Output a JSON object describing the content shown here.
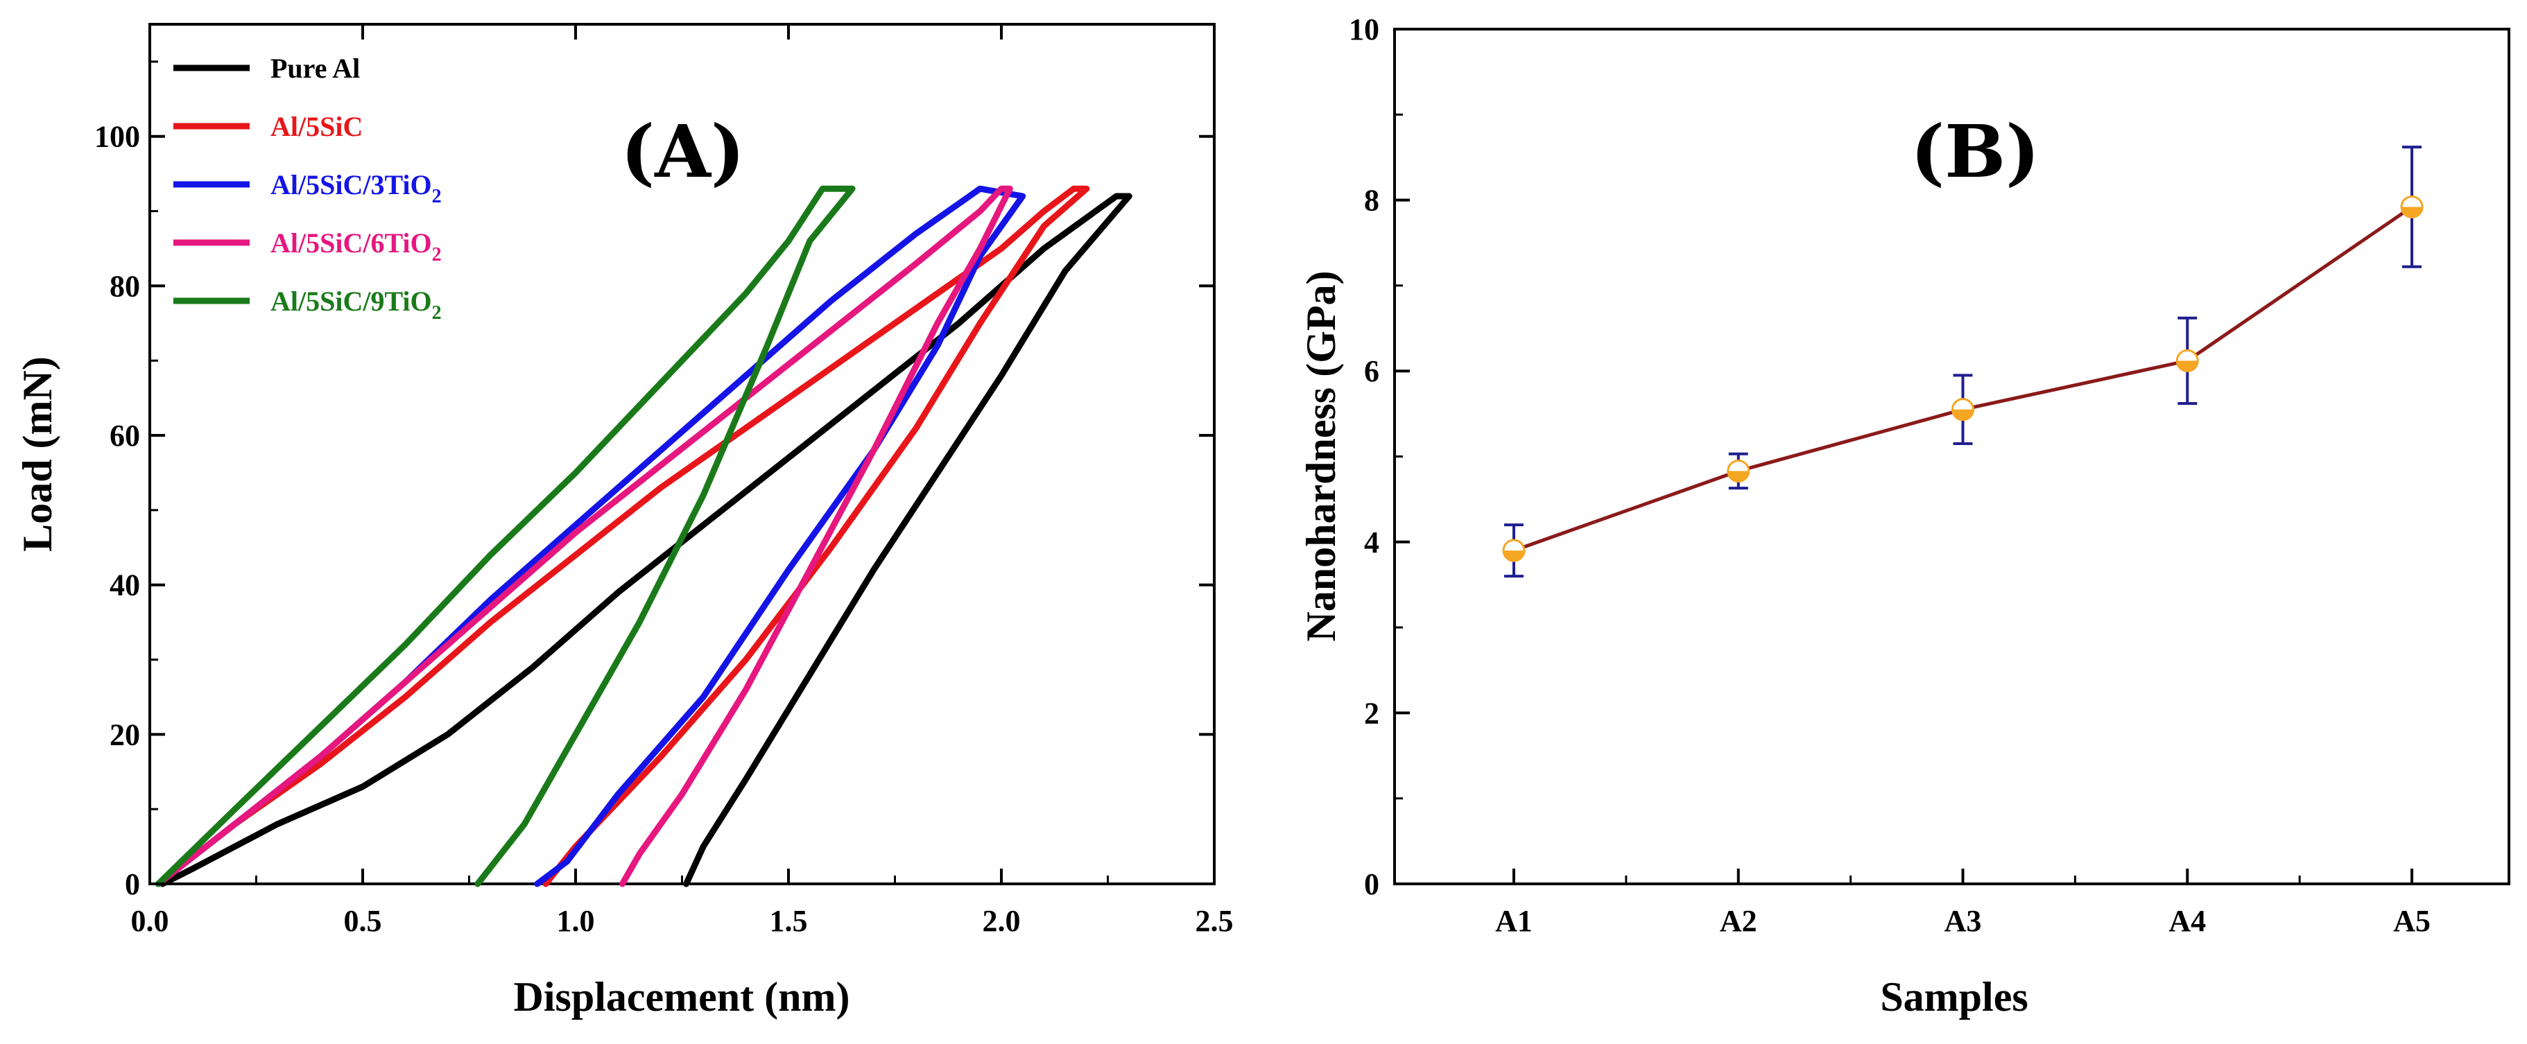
{
  "chart_data": [
    {
      "type": "line",
      "panel_label": "(A)",
      "xlabel": "Displacement (nm)",
      "ylabel": "Load (mN)",
      "xlim": [
        0.0,
        2.5
      ],
      "ylim": [
        0,
        115
      ],
      "xticks": [
        0.0,
        0.5,
        1.0,
        1.5,
        2.0,
        2.5
      ],
      "xtick_labels": [
        "0.0",
        "0.5",
        "1.0",
        "1.5",
        "2.0",
        "2.5"
      ],
      "yticks": [
        0,
        20,
        40,
        60,
        80,
        100
      ],
      "ytick_labels": [
        "0",
        "20",
        "40",
        "60",
        "80",
        "100"
      ],
      "legend_position": "top-left",
      "series": [
        {
          "name": "Pure Al",
          "name_parts": [
            "Pure Al"
          ],
          "color": "#000000",
          "loading": [
            [
              0.03,
              0
            ],
            [
              0.1,
              2
            ],
            [
              0.3,
              8
            ],
            [
              0.5,
              13
            ],
            [
              0.7,
              20
            ],
            [
              0.9,
              29
            ],
            [
              1.1,
              39
            ],
            [
              1.3,
              48
            ],
            [
              1.5,
              57
            ],
            [
              1.7,
              66
            ],
            [
              1.9,
              75
            ],
            [
              2.1,
              85
            ],
            [
              2.27,
              92
            ]
          ],
          "unloading": [
            [
              2.3,
              92
            ],
            [
              2.15,
              82
            ],
            [
              2.0,
              68
            ],
            [
              1.85,
              55
            ],
            [
              1.7,
              42
            ],
            [
              1.55,
              28
            ],
            [
              1.4,
              14
            ],
            [
              1.3,
              5
            ],
            [
              1.26,
              0
            ]
          ]
        },
        {
          "name": "Al/5SiC",
          "name_parts": [
            "Al/5SiC"
          ],
          "color": "#e8161a",
          "loading": [
            [
              0.02,
              0
            ],
            [
              0.2,
              8
            ],
            [
              0.4,
              16
            ],
            [
              0.6,
              25
            ],
            [
              0.8,
              35
            ],
            [
              1.0,
              44
            ],
            [
              1.2,
              53
            ],
            [
              1.4,
              61
            ],
            [
              1.6,
              69
            ],
            [
              1.8,
              77
            ],
            [
              2.0,
              85
            ],
            [
              2.1,
              90
            ],
            [
              2.17,
              93
            ]
          ],
          "unloading": [
            [
              2.2,
              93
            ],
            [
              2.1,
              88
            ],
            [
              1.95,
              75
            ],
            [
              1.8,
              61
            ],
            [
              1.6,
              45
            ],
            [
              1.4,
              30
            ],
            [
              1.2,
              17
            ],
            [
              1.0,
              5
            ],
            [
              0.93,
              0
            ]
          ]
        },
        {
          "name": "Al/5SiC/3TiO2",
          "name_parts": [
            "Al/5SiC/3TiO",
            "2"
          ],
          "color": "#1414e6",
          "loading": [
            [
              0.02,
              0
            ],
            [
              0.2,
              8
            ],
            [
              0.4,
              17
            ],
            [
              0.6,
              27
            ],
            [
              0.8,
              38
            ],
            [
              1.0,
              48
            ],
            [
              1.2,
              58
            ],
            [
              1.4,
              68
            ],
            [
              1.6,
              78
            ],
            [
              1.8,
              87
            ],
            [
              1.9,
              91
            ],
            [
              1.95,
              93
            ]
          ],
          "unloading": [
            [
              2.05,
              92
            ],
            [
              1.95,
              84
            ],
            [
              1.85,
              72
            ],
            [
              1.7,
              58
            ],
            [
              1.5,
              42
            ],
            [
              1.3,
              25
            ],
            [
              1.1,
              12
            ],
            [
              0.98,
              3
            ],
            [
              0.91,
              0
            ]
          ]
        },
        {
          "name": "Al/5SiC/6TiO2",
          "name_parts": [
            "Al/5SiC/6TiO",
            "2"
          ],
          "color": "#e6177f",
          "loading": [
            [
              0.02,
              0
            ],
            [
              0.2,
              8
            ],
            [
              0.4,
              17
            ],
            [
              0.6,
              27
            ],
            [
              0.8,
              37
            ],
            [
              1.0,
              47
            ],
            [
              1.2,
              56
            ],
            [
              1.4,
              65
            ],
            [
              1.6,
              74
            ],
            [
              1.8,
              83
            ],
            [
              1.95,
              90
            ],
            [
              2.0,
              93
            ]
          ],
          "unloading": [
            [
              2.02,
              93
            ],
            [
              1.95,
              85
            ],
            [
              1.85,
              75
            ],
            [
              1.7,
              58
            ],
            [
              1.55,
              42
            ],
            [
              1.4,
              26
            ],
            [
              1.25,
              12
            ],
            [
              1.15,
              4
            ],
            [
              1.11,
              0
            ]
          ]
        },
        {
          "name": "Al/5SiC/9TiO2",
          "name_parts": [
            "Al/5SiC/9TiO",
            "2"
          ],
          "color": "#1a7a1a",
          "loading": [
            [
              0.02,
              0
            ],
            [
              0.2,
              10
            ],
            [
              0.4,
              21
            ],
            [
              0.6,
              32
            ],
            [
              0.8,
              44
            ],
            [
              1.0,
              55
            ],
            [
              1.2,
              67
            ],
            [
              1.4,
              79
            ],
            [
              1.5,
              86
            ],
            [
              1.58,
              93
            ]
          ],
          "unloading": [
            [
              1.65,
              93
            ],
            [
              1.55,
              86
            ],
            [
              1.45,
              72
            ],
            [
              1.3,
              52
            ],
            [
              1.15,
              35
            ],
            [
              1.0,
              20
            ],
            [
              0.88,
              8
            ],
            [
              0.77,
              0
            ]
          ]
        }
      ]
    },
    {
      "type": "line",
      "panel_label": "(B)",
      "xlabel": "Samples",
      "ylabel": "Nanohardness (GPa)",
      "ylim": [
        0,
        10
      ],
      "yticks": [
        0,
        2,
        4,
        6,
        8,
        10
      ],
      "ytick_labels": [
        "0",
        "2",
        "4",
        "6",
        "8",
        "10"
      ],
      "categories": [
        "A1",
        "A2",
        "A3",
        "A4",
        "A5"
      ],
      "values": [
        3.9,
        4.83,
        5.55,
        6.12,
        7.92
      ],
      "errors": [
        0.3,
        0.2,
        0.4,
        0.5,
        0.7
      ],
      "line_color": "#8b1a1a",
      "marker_color": "#f5a623",
      "errorbar_color": "#1f1f8f"
    }
  ]
}
